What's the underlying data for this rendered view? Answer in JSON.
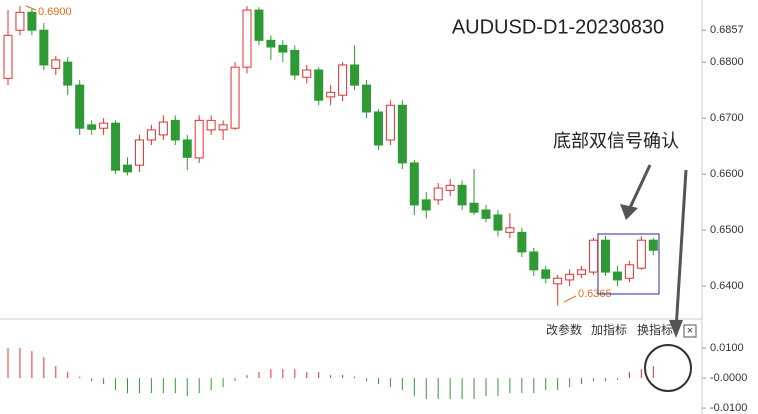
{
  "chart_data": [
    {
      "type": "candlestick",
      "title": "AUDUSD-D1-20230830",
      "up_color": "#e0312e",
      "down_color": "#2f9a35",
      "ylim": [
        0.6343,
        0.6911
      ],
      "yticks": [
        {
          "value": 0.64,
          "label": "0.6400"
        },
        {
          "value": 0.65,
          "label": "0.6500"
        },
        {
          "value": 0.66,
          "label": "0.6600"
        },
        {
          "value": 0.67,
          "label": "0.6700"
        },
        {
          "value": 0.68,
          "label": "0.6800"
        },
        {
          "value": 0.6857,
          "label": "0.6857"
        }
      ],
      "annotations": [
        "0.6900",
        "0.6365",
        "底部双信号确认"
      ],
      "ohlc": [
        [
          0.6771,
          0.6893,
          0.6759,
          0.6848
        ],
        [
          0.6857,
          0.69,
          0.6848,
          0.6889
        ],
        [
          0.6889,
          0.6895,
          0.6848,
          0.6857
        ],
        [
          0.6857,
          0.687,
          0.6786,
          0.6795
        ],
        [
          0.6789,
          0.6811,
          0.6777,
          0.6804
        ],
        [
          0.68,
          0.6809,
          0.6741,
          0.6759
        ],
        [
          0.6759,
          0.6768,
          0.667,
          0.6682
        ],
        [
          0.6688,
          0.6696,
          0.667,
          0.668
        ],
        [
          0.6682,
          0.67,
          0.667,
          0.6691
        ],
        [
          0.6691,
          0.6696,
          0.66,
          0.6607
        ],
        [
          0.6616,
          0.663,
          0.6598,
          0.6604
        ],
        [
          0.6616,
          0.667,
          0.6604,
          0.6661
        ],
        [
          0.6661,
          0.6688,
          0.6652,
          0.6679
        ],
        [
          0.667,
          0.6705,
          0.6661,
          0.6693
        ],
        [
          0.6696,
          0.6705,
          0.6652,
          0.6661
        ],
        [
          0.6661,
          0.667,
          0.6607,
          0.663
        ],
        [
          0.6629,
          0.6705,
          0.662,
          0.6696
        ],
        [
          0.6679,
          0.6705,
          0.667,
          0.6696
        ],
        [
          0.6679,
          0.6696,
          0.6661,
          0.6688
        ],
        [
          0.6682,
          0.68,
          0.6679,
          0.6791
        ],
        [
          0.6791,
          0.69,
          0.678,
          0.6893
        ],
        [
          0.6893,
          0.6898,
          0.683,
          0.6839
        ],
        [
          0.6839,
          0.6848,
          0.6804,
          0.6827
        ],
        [
          0.683,
          0.6839,
          0.68,
          0.6818
        ],
        [
          0.6821,
          0.683,
          0.6768,
          0.6777
        ],
        [
          0.6773,
          0.6795,
          0.6762,
          0.6786
        ],
        [
          0.6786,
          0.6791,
          0.6723,
          0.6732
        ],
        [
          0.6738,
          0.6759,
          0.6723,
          0.6746
        ],
        [
          0.6741,
          0.68,
          0.673,
          0.6795
        ],
        [
          0.6795,
          0.683,
          0.675,
          0.6759
        ],
        [
          0.6759,
          0.6768,
          0.67,
          0.6711
        ],
        [
          0.6711,
          0.6716,
          0.6643,
          0.6652
        ],
        [
          0.6661,
          0.6732,
          0.6652,
          0.6723
        ],
        [
          0.6723,
          0.6732,
          0.6609,
          0.662
        ],
        [
          0.662,
          0.6625,
          0.6527,
          0.6545
        ],
        [
          0.6554,
          0.6568,
          0.6521,
          0.6536
        ],
        [
          0.6554,
          0.6584,
          0.6545,
          0.6575
        ],
        [
          0.6571,
          0.6591,
          0.6561,
          0.658
        ],
        [
          0.658,
          0.6589,
          0.6536,
          0.6545
        ],
        [
          0.6548,
          0.6609,
          0.6527,
          0.6532
        ],
        [
          0.6536,
          0.6545,
          0.6514,
          0.6521
        ],
        [
          0.6527,
          0.6536,
          0.6489,
          0.65
        ],
        [
          0.6496,
          0.653,
          0.6486,
          0.6504
        ],
        [
          0.6496,
          0.6504,
          0.6452,
          0.6461
        ],
        [
          0.6461,
          0.6468,
          0.6418,
          0.6429
        ],
        [
          0.6429,
          0.6436,
          0.6405,
          0.6414
        ],
        [
          0.6404,
          0.642,
          0.6365,
          0.6414
        ],
        [
          0.6411,
          0.643,
          0.64,
          0.6421
        ],
        [
          0.6421,
          0.6436,
          0.6414,
          0.6429
        ],
        [
          0.6425,
          0.6486,
          0.642,
          0.6482
        ],
        [
          0.6482,
          0.649,
          0.6418,
          0.6425
        ],
        [
          0.6425,
          0.6436,
          0.64,
          0.6411
        ],
        [
          0.6414,
          0.6445,
          0.6407,
          0.6438
        ],
        [
          0.6432,
          0.6489,
          0.6429,
          0.6482
        ],
        [
          0.6482,
          0.6486,
          0.6455,
          0.6464
        ]
      ]
    },
    {
      "type": "bar",
      "up_color": "#e0312e",
      "down_color": "#2f9a35",
      "ylim": [
        -0.0113,
        0.0187
      ],
      "yticks": [
        {
          "value": -0.01,
          "label": "-0.0100"
        },
        {
          "value": 0,
          "label": "-0.0000"
        },
        {
          "value": 0.01,
          "label": "0.0100"
        }
      ],
      "buttons": [
        "改参数",
        "加指标",
        "换指标"
      ],
      "close": "×",
      "values": [
        0.01,
        0.01,
        0.009,
        0.007,
        0.004,
        0.002,
        0.0005,
        -0.001,
        -0.002,
        -0.004,
        -0.005,
        -0.005,
        -0.005,
        -0.005,
        -0.005,
        -0.006,
        -0.005,
        -0.004,
        -0.003,
        -0.001,
        0.001,
        0.002,
        0.003,
        0.003,
        0.003,
        0.002,
        0.002,
        0.001,
        0.001,
        0.0005,
        -0.001,
        -0.002,
        -0.003,
        -0.004,
        -0.006,
        -0.007,
        -0.007,
        -0.007,
        -0.007,
        -0.007,
        -0.006,
        -0.006,
        -0.005,
        -0.005,
        -0.005,
        -0.004,
        -0.004,
        -0.003,
        -0.002,
        -0.001,
        -0.001,
        -0.0005,
        0.002,
        0.003,
        0.004
      ]
    }
  ]
}
